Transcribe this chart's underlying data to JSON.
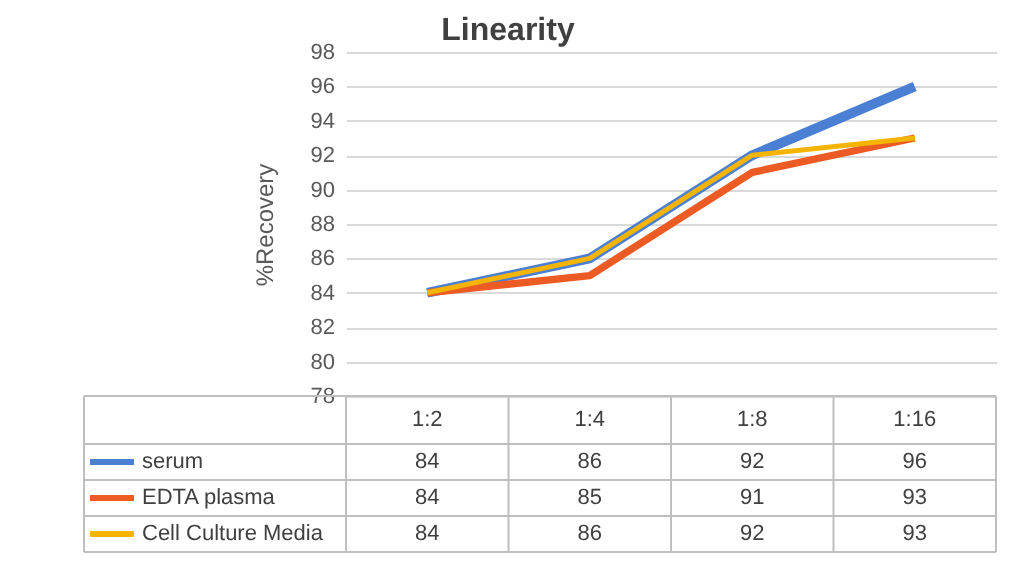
{
  "chart_data": {
    "type": "line",
    "title": "Linearity",
    "ylabel": "%Recovery",
    "categories": [
      "1:2",
      "1:4",
      "1:8",
      "1:16"
    ],
    "series": [
      {
        "name": "serum",
        "color": "#4a7fd4",
        "values": [
          84,
          86,
          92,
          96
        ]
      },
      {
        "name": "EDTA plasma",
        "color": "#ed5b24",
        "values": [
          84,
          85,
          91,
          93
        ]
      },
      {
        "name": "Cell Culture Media",
        "color": "#f5b400",
        "values": [
          84,
          86,
          92,
          93
        ]
      }
    ],
    "ylim": [
      78,
      98
    ],
    "yticks": [
      78,
      80,
      82,
      84,
      86,
      88,
      90,
      92,
      94,
      96,
      98
    ],
    "grid": "y",
    "legend": "bottom",
    "data_labels": true,
    "marker": "none",
    "line_style": "solid"
  }
}
